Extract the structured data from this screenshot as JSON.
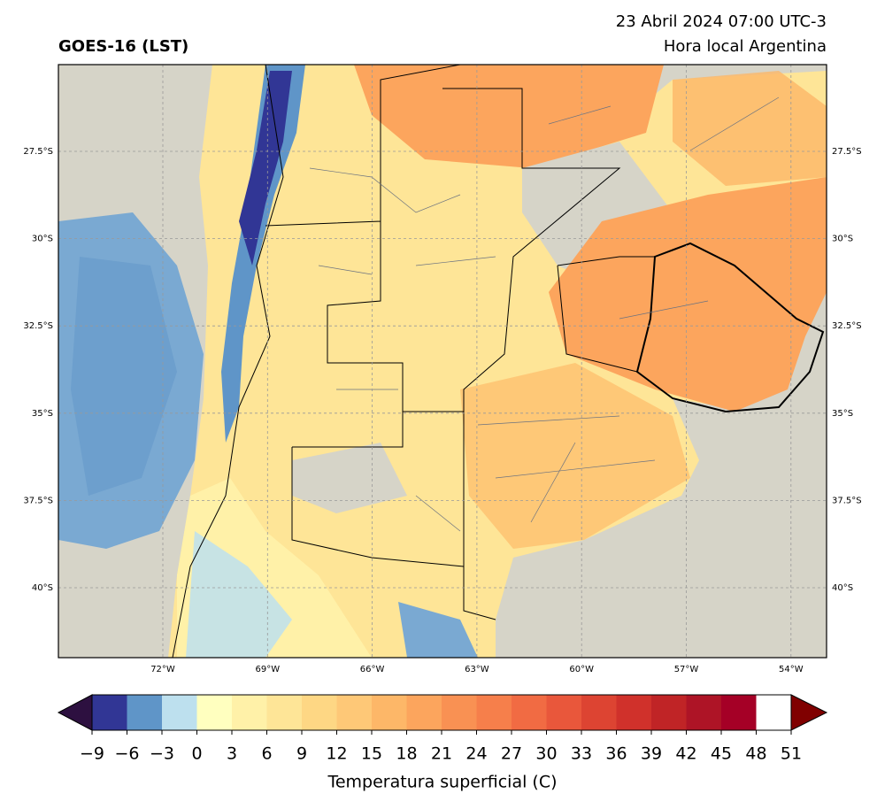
{
  "header": {
    "title": "GOES-16 (LST)",
    "date": "23 Abril 2024 07:00 UTC-3",
    "subtitle": "Hora local Argentina"
  },
  "map": {
    "lat_labels": [
      "27.5°S",
      "30°S",
      "32.5°S",
      "35°S",
      "37.5°S",
      "40°S"
    ],
    "lon_labels": [
      "72°W",
      "69°W",
      "66°W",
      "63°W",
      "60°W",
      "57°W",
      "54°W"
    ]
  },
  "colorbar": {
    "ticks": [
      {
        "value": -9,
        "label": "−9"
      },
      {
        "value": -6,
        "label": "−6"
      },
      {
        "value": -3,
        "label": "−3"
      },
      0,
      3,
      6,
      9,
      12,
      15,
      18,
      21,
      24,
      27,
      30,
      33,
      36,
      39,
      42,
      45,
      48,
      51
    ],
    "colors": [
      "#313695",
      "#5f95c8",
      "#bde0ee",
      "#ffffbf",
      "#fff1a8",
      "#fee597",
      "#fed784",
      "#fec877",
      "#fdb768",
      "#fca55d",
      "#f99153",
      "#f67f4b",
      "#f16b43",
      "#e9573b",
      "#dd4432",
      "#d0312b",
      "#c02426",
      "#ae1426",
      "#a50026"
    ],
    "under_color": "#2d1040",
    "over_color": "#800000",
    "label": "Temperatura superficial (C)"
  }
}
